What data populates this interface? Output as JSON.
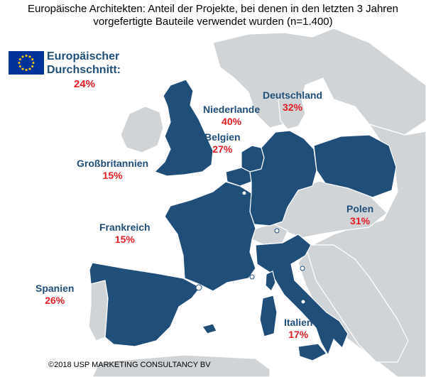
{
  "title": {
    "line1": "Europäische Architekten: Anteil der Projekte, bei denen in den letzten 3 Jahren",
    "line2": "vorgefertigte Bauteile verwendet wurden (n=1.400)"
  },
  "eu_average": {
    "line1": "Europäischer",
    "line2": "Durchschnitt:",
    "value": "24%"
  },
  "countries": [
    {
      "id": "gb",
      "name": "Großbritannien",
      "value": "15%"
    },
    {
      "id": "nl",
      "name": "Niederlande",
      "value": "40%"
    },
    {
      "id": "be",
      "name": "Belgien",
      "value": "27%"
    },
    {
      "id": "de",
      "name": "Deutschland",
      "value": "32%"
    },
    {
      "id": "fr",
      "name": "Frankreich",
      "value": "15%"
    },
    {
      "id": "pl",
      "name": "Polen",
      "value": "31%"
    },
    {
      "id": "es",
      "name": "Spanien",
      "value": "26%"
    },
    {
      "id": "it",
      "name": "Italien",
      "value": "17%"
    }
  ],
  "colors": {
    "highlight": "#1f4e79",
    "other_land": "#d0d4d7",
    "sea": "#ffffff",
    "percent": "#e31b23"
  },
  "icons": {
    "flag": "eu-flag-icon"
  },
  "copyright": "©2018 USP MARKETING CONSULTANCY BV"
}
